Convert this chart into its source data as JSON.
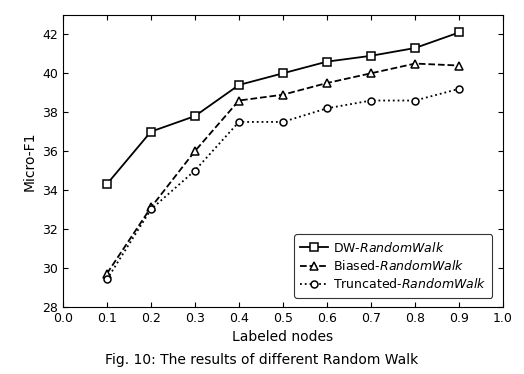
{
  "x": [
    0.1,
    0.2,
    0.3,
    0.4,
    0.5,
    0.6,
    0.7,
    0.8,
    0.9
  ],
  "dw": [
    34.3,
    37.0,
    37.8,
    39.4,
    40.0,
    40.6,
    40.9,
    41.3,
    42.1
  ],
  "biased": [
    29.7,
    33.1,
    36.0,
    38.6,
    38.9,
    39.5,
    40.0,
    40.5,
    40.4
  ],
  "truncated": [
    29.4,
    33.0,
    35.0,
    37.5,
    37.5,
    38.2,
    38.6,
    38.6,
    39.2
  ],
  "xlabel": "Labeled nodes",
  "ylabel": "Micro-F1",
  "xlim": [
    0.0,
    1.0
  ],
  "ylim": [
    28,
    43
  ],
  "yticks": [
    28,
    30,
    32,
    34,
    36,
    38,
    40,
    42
  ],
  "xticks": [
    0.0,
    0.1,
    0.2,
    0.3,
    0.4,
    0.5,
    0.6,
    0.7,
    0.8,
    0.9,
    1.0
  ],
  "caption": "Fig. 10: The results of different Random Walk",
  "bg_color": "#ffffff"
}
